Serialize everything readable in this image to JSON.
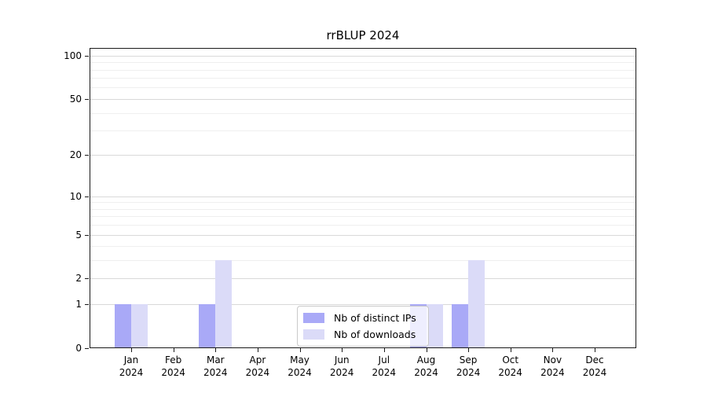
{
  "title": "rrBLUP 2024",
  "chart_data": {
    "type": "bar",
    "title": "rrBLUP 2024",
    "xlabel": "",
    "ylabel": "",
    "scale": "log1p",
    "ylim": [
      0,
      113
    ],
    "y_ticks": [
      0,
      1,
      2,
      5,
      10,
      20,
      50,
      100
    ],
    "minor_gridlines": [
      3,
      4,
      6,
      7,
      8,
      9,
      30,
      40,
      60,
      70,
      80,
      90
    ],
    "grid": "on",
    "months": [
      "Jan",
      "Feb",
      "Mar",
      "Apr",
      "May",
      "Jun",
      "Jul",
      "Aug",
      "Sep",
      "Oct",
      "Nov",
      "Dec"
    ],
    "year_label": "2024",
    "series": [
      {
        "name": "Nb of distinct IPs",
        "color": "#a9a9f7",
        "values": [
          1,
          0,
          1,
          0,
          0,
          0,
          0,
          1,
          1,
          0,
          0,
          0
        ]
      },
      {
        "name": "Nb of downloads",
        "color": "#dbdbf8",
        "values": [
          1,
          0,
          3,
          0,
          0,
          0,
          0,
          1,
          3,
          0,
          0,
          0
        ]
      }
    ],
    "legend_position": "bottom-center"
  }
}
